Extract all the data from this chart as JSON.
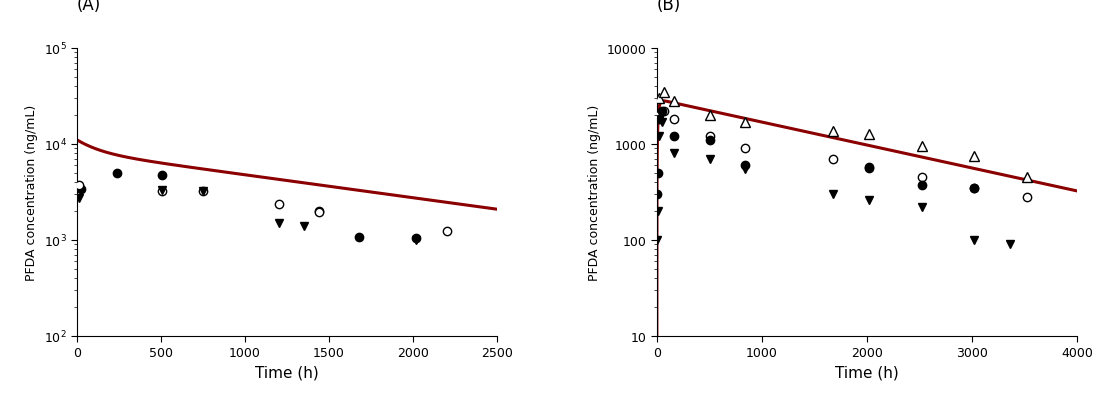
{
  "panel_A": {
    "label": "(A)",
    "line_color": "#8B0000",
    "line_width": 2.2,
    "line_params": {
      "C0": 11000,
      "k1": 0.008,
      "k2": 0.00055,
      "f": 0.25
    },
    "scatter_filled_circle": {
      "x": [
        24,
        240,
        504,
        1440,
        1680,
        2016
      ],
      "y": [
        3400,
        5000,
        4700,
        2000,
        1080,
        1050
      ]
    },
    "scatter_open_circle": {
      "x": [
        10,
        504,
        750,
        1200,
        1440,
        2200
      ],
      "y": [
        3700,
        3200,
        3200,
        2350,
        1950,
        1230
      ]
    },
    "scatter_filled_triangle_down": {
      "x": [
        10,
        504,
        750,
        1200,
        1350,
        2016
      ],
      "y": [
        2700,
        3300,
        3200,
        1500,
        1400,
        1000
      ]
    },
    "xlabel": "Time (h)",
    "ylabel": "PFDA concentration (ng/mL)",
    "xlim": [
      0,
      2500
    ],
    "ylim_log": [
      100,
      100000
    ],
    "yticks": [
      100,
      1000,
      10000,
      100000
    ],
    "ytick_labels": [
      "10$^2$",
      "10$^3$",
      "10$^4$",
      "10$^5$"
    ],
    "xticks": [
      0,
      500,
      1000,
      1500,
      2000,
      2500
    ]
  },
  "panel_B": {
    "label": "(B)",
    "line_color": "#8B0000",
    "line_width": 2.2,
    "line_params": {
      "C0": 10,
      "Cmax": 2800,
      "k_abs": 0.08,
      "k_elim": 0.00055
    },
    "scatter_open_triangle": {
      "x": [
        24,
        72,
        168,
        504,
        840,
        1680,
        2016,
        2520,
        3024,
        3528
      ],
      "y": [
        3000,
        3500,
        2800,
        2000,
        1700,
        1350,
        1250,
        950,
        750,
        450
      ]
    },
    "scatter_open_circle": {
      "x": [
        24,
        72,
        168,
        504,
        840,
        1680,
        2016,
        2520,
        3024,
        3528
      ],
      "y": [
        2000,
        2200,
        1800,
        1200,
        900,
        700,
        560,
        450,
        350,
        280
      ]
    },
    "scatter_filled_circle": {
      "x": [
        4,
        10,
        24,
        48,
        168,
        504,
        840,
        2016,
        2520,
        3024
      ],
      "y": [
        300,
        500,
        1800,
        2200,
        1200,
        1100,
        600,
        580,
        370,
        350
      ]
    },
    "scatter_filled_triangle_down": {
      "x": [
        4,
        10,
        24,
        48,
        168,
        504,
        840,
        1680,
        2016,
        2520,
        3024,
        3360
      ],
      "y": [
        100,
        200,
        1200,
        1700,
        800,
        700,
        550,
        300,
        260,
        220,
        100,
        90
      ]
    },
    "xlabel": "Time (h)",
    "ylabel": "PFDA concentration (ng/mL)",
    "xlim": [
      0,
      4000
    ],
    "ylim_log": [
      10,
      10000
    ],
    "ytick_labels": [
      "10",
      "100",
      "1000",
      "10000"
    ],
    "yticks": [
      10,
      100,
      1000,
      10000
    ],
    "xticks": [
      0,
      1000,
      2000,
      3000,
      4000
    ]
  },
  "figure_bg": "#ffffff",
  "marker_size": 6,
  "marker_edgewidth": 1.0
}
